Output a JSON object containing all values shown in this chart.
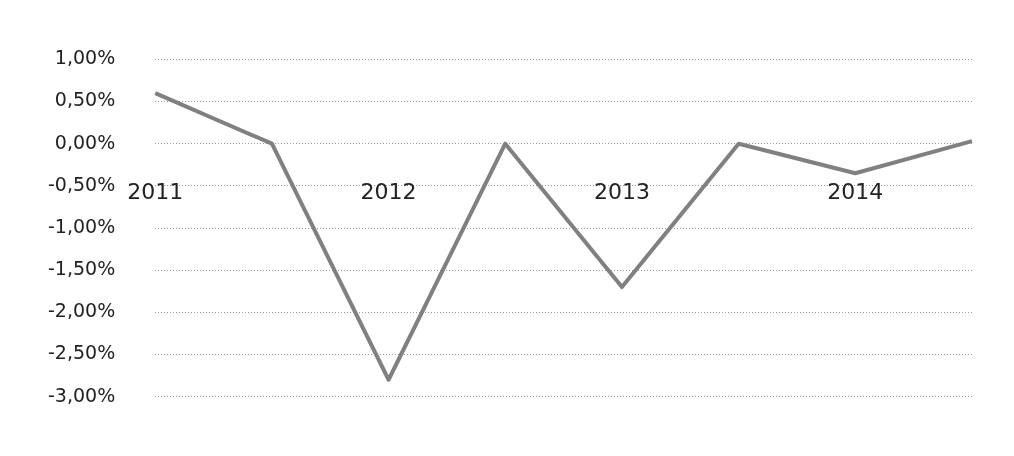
{
  "chart_data": {
    "type": "line",
    "categories": [
      "2011",
      null,
      "2012",
      null,
      "2013",
      null,
      "2014",
      null
    ],
    "series": [
      {
        "color": "#808080",
        "values": [
          0.6,
          0,
          -2.8,
          0,
          -1.7,
          0,
          -0.35,
          0.03
        ]
      }
    ],
    "ylim": [
      -3,
      1
    ],
    "yticks": [
      {
        "value": 1,
        "label": "1,00%"
      },
      {
        "value": 0.5,
        "label": "0,50%"
      },
      {
        "value": 0,
        "label": "0,00%"
      },
      {
        "value": -0.5,
        "label": "-0,50%"
      },
      {
        "value": -1,
        "label": "-1,00%"
      },
      {
        "value": -1.5,
        "label": "-1,50%"
      },
      {
        "value": -2,
        "label": "-2,00%"
      },
      {
        "value": -2.5,
        "label": "-2,50%"
      },
      {
        "value": -3,
        "label": "-3,00%"
      }
    ],
    "grid": "y",
    "legend": false,
    "marker": "none",
    "line_style": "solid"
  }
}
